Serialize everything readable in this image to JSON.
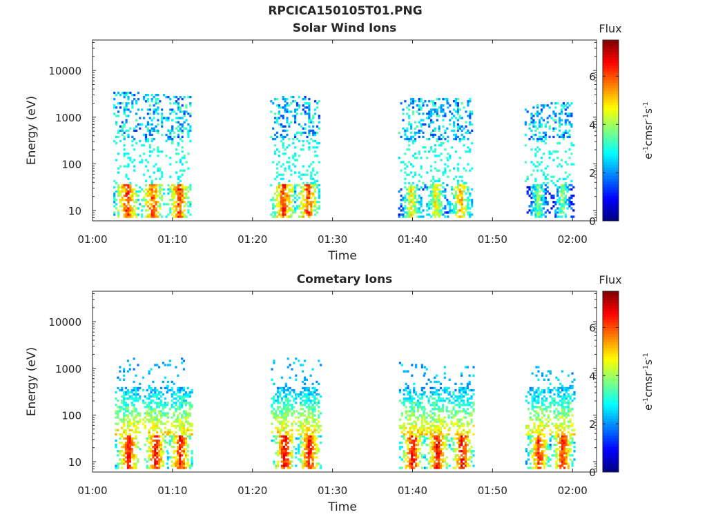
{
  "figure_title": "RPCICA150105T01.PNG",
  "chart_data": [
    {
      "type": "heatmap",
      "title": "Solar Wind Ions",
      "xlabel": "Time",
      "ylabel": "Energy (eV)",
      "x_ticks": [
        "01:00",
        "01:10",
        "01:20",
        "01:30",
        "01:40",
        "01:50",
        "02:00"
      ],
      "y_ticks": [
        "10",
        "100",
        "1000",
        "10000"
      ],
      "y_scale": "log",
      "ylim": [
        6,
        45000
      ],
      "xlim_minutes": [
        0,
        63
      ],
      "colorbar": {
        "title": "Flux",
        "label": "eV-1cm-2sr-1s-1",
        "ticks": [
          "0",
          "2",
          "4",
          "6"
        ],
        "range": [
          0,
          7.5
        ]
      },
      "bursts": [
        {
          "center_min": 4.2,
          "peak_flux_low": 7.0,
          "hi_energy": 1800
        },
        {
          "center_min": 7.4,
          "peak_flux_low": 6.8,
          "hi_energy": 1600
        },
        {
          "center_min": 10.7,
          "peak_flux_low": 6.9,
          "hi_energy": 1500
        },
        {
          "center_min": 23.8,
          "peak_flux_low": 7.0,
          "hi_energy": 1500
        },
        {
          "center_min": 26.8,
          "peak_flux_low": 6.8,
          "hi_energy": 1500
        },
        {
          "center_min": 39.8,
          "peak_flux_low": 5.5,
          "hi_energy": 1400
        },
        {
          "center_min": 42.8,
          "peak_flux_low": 5.5,
          "hi_energy": 1400
        },
        {
          "center_min": 45.9,
          "peak_flux_low": 6.0,
          "hi_energy": 1300
        },
        {
          "center_min": 55.6,
          "peak_flux_low": 4.5,
          "hi_energy": 1000
        },
        {
          "center_min": 58.6,
          "peak_flux_low": 4.5,
          "hi_energy": 1100
        }
      ]
    },
    {
      "type": "heatmap",
      "title": "Cometary Ions",
      "xlabel": "Time",
      "ylabel": "Energy (eV)",
      "x_ticks": [
        "01:00",
        "01:10",
        "01:20",
        "01:30",
        "01:40",
        "01:50",
        "02:00"
      ],
      "y_ticks": [
        "10",
        "100",
        "1000",
        "10000"
      ],
      "y_scale": "log",
      "ylim": [
        6,
        45000
      ],
      "xlim_minutes": [
        0,
        63
      ],
      "colorbar": {
        "title": "Flux",
        "label": "eV-1cm-2sr-1s-1",
        "ticks": [
          "0",
          "2",
          "4",
          "6"
        ],
        "range": [
          0,
          7.5
        ]
      },
      "bursts": [
        {
          "center_min": 4.4,
          "peak_flux_low": 7.3,
          "hi_energy": 900
        },
        {
          "center_min": 7.8,
          "peak_flux_low": 7.3,
          "hi_energy": 800
        },
        {
          "center_min": 10.9,
          "peak_flux_low": 7.2,
          "hi_energy": 900
        },
        {
          "center_min": 23.9,
          "peak_flux_low": 7.3,
          "hi_energy": 900
        },
        {
          "center_min": 27.0,
          "peak_flux_low": 7.2,
          "hi_energy": 800
        },
        {
          "center_min": 39.9,
          "peak_flux_low": 7.3,
          "hi_energy": 700
        },
        {
          "center_min": 43.0,
          "peak_flux_low": 7.3,
          "hi_energy": 700
        },
        {
          "center_min": 46.1,
          "peak_flux_low": 7.3,
          "hi_energy": 700
        },
        {
          "center_min": 55.7,
          "peak_flux_low": 7.0,
          "hi_energy": 600
        },
        {
          "center_min": 58.7,
          "peak_flux_low": 7.0,
          "hi_energy": 600
        }
      ]
    }
  ]
}
